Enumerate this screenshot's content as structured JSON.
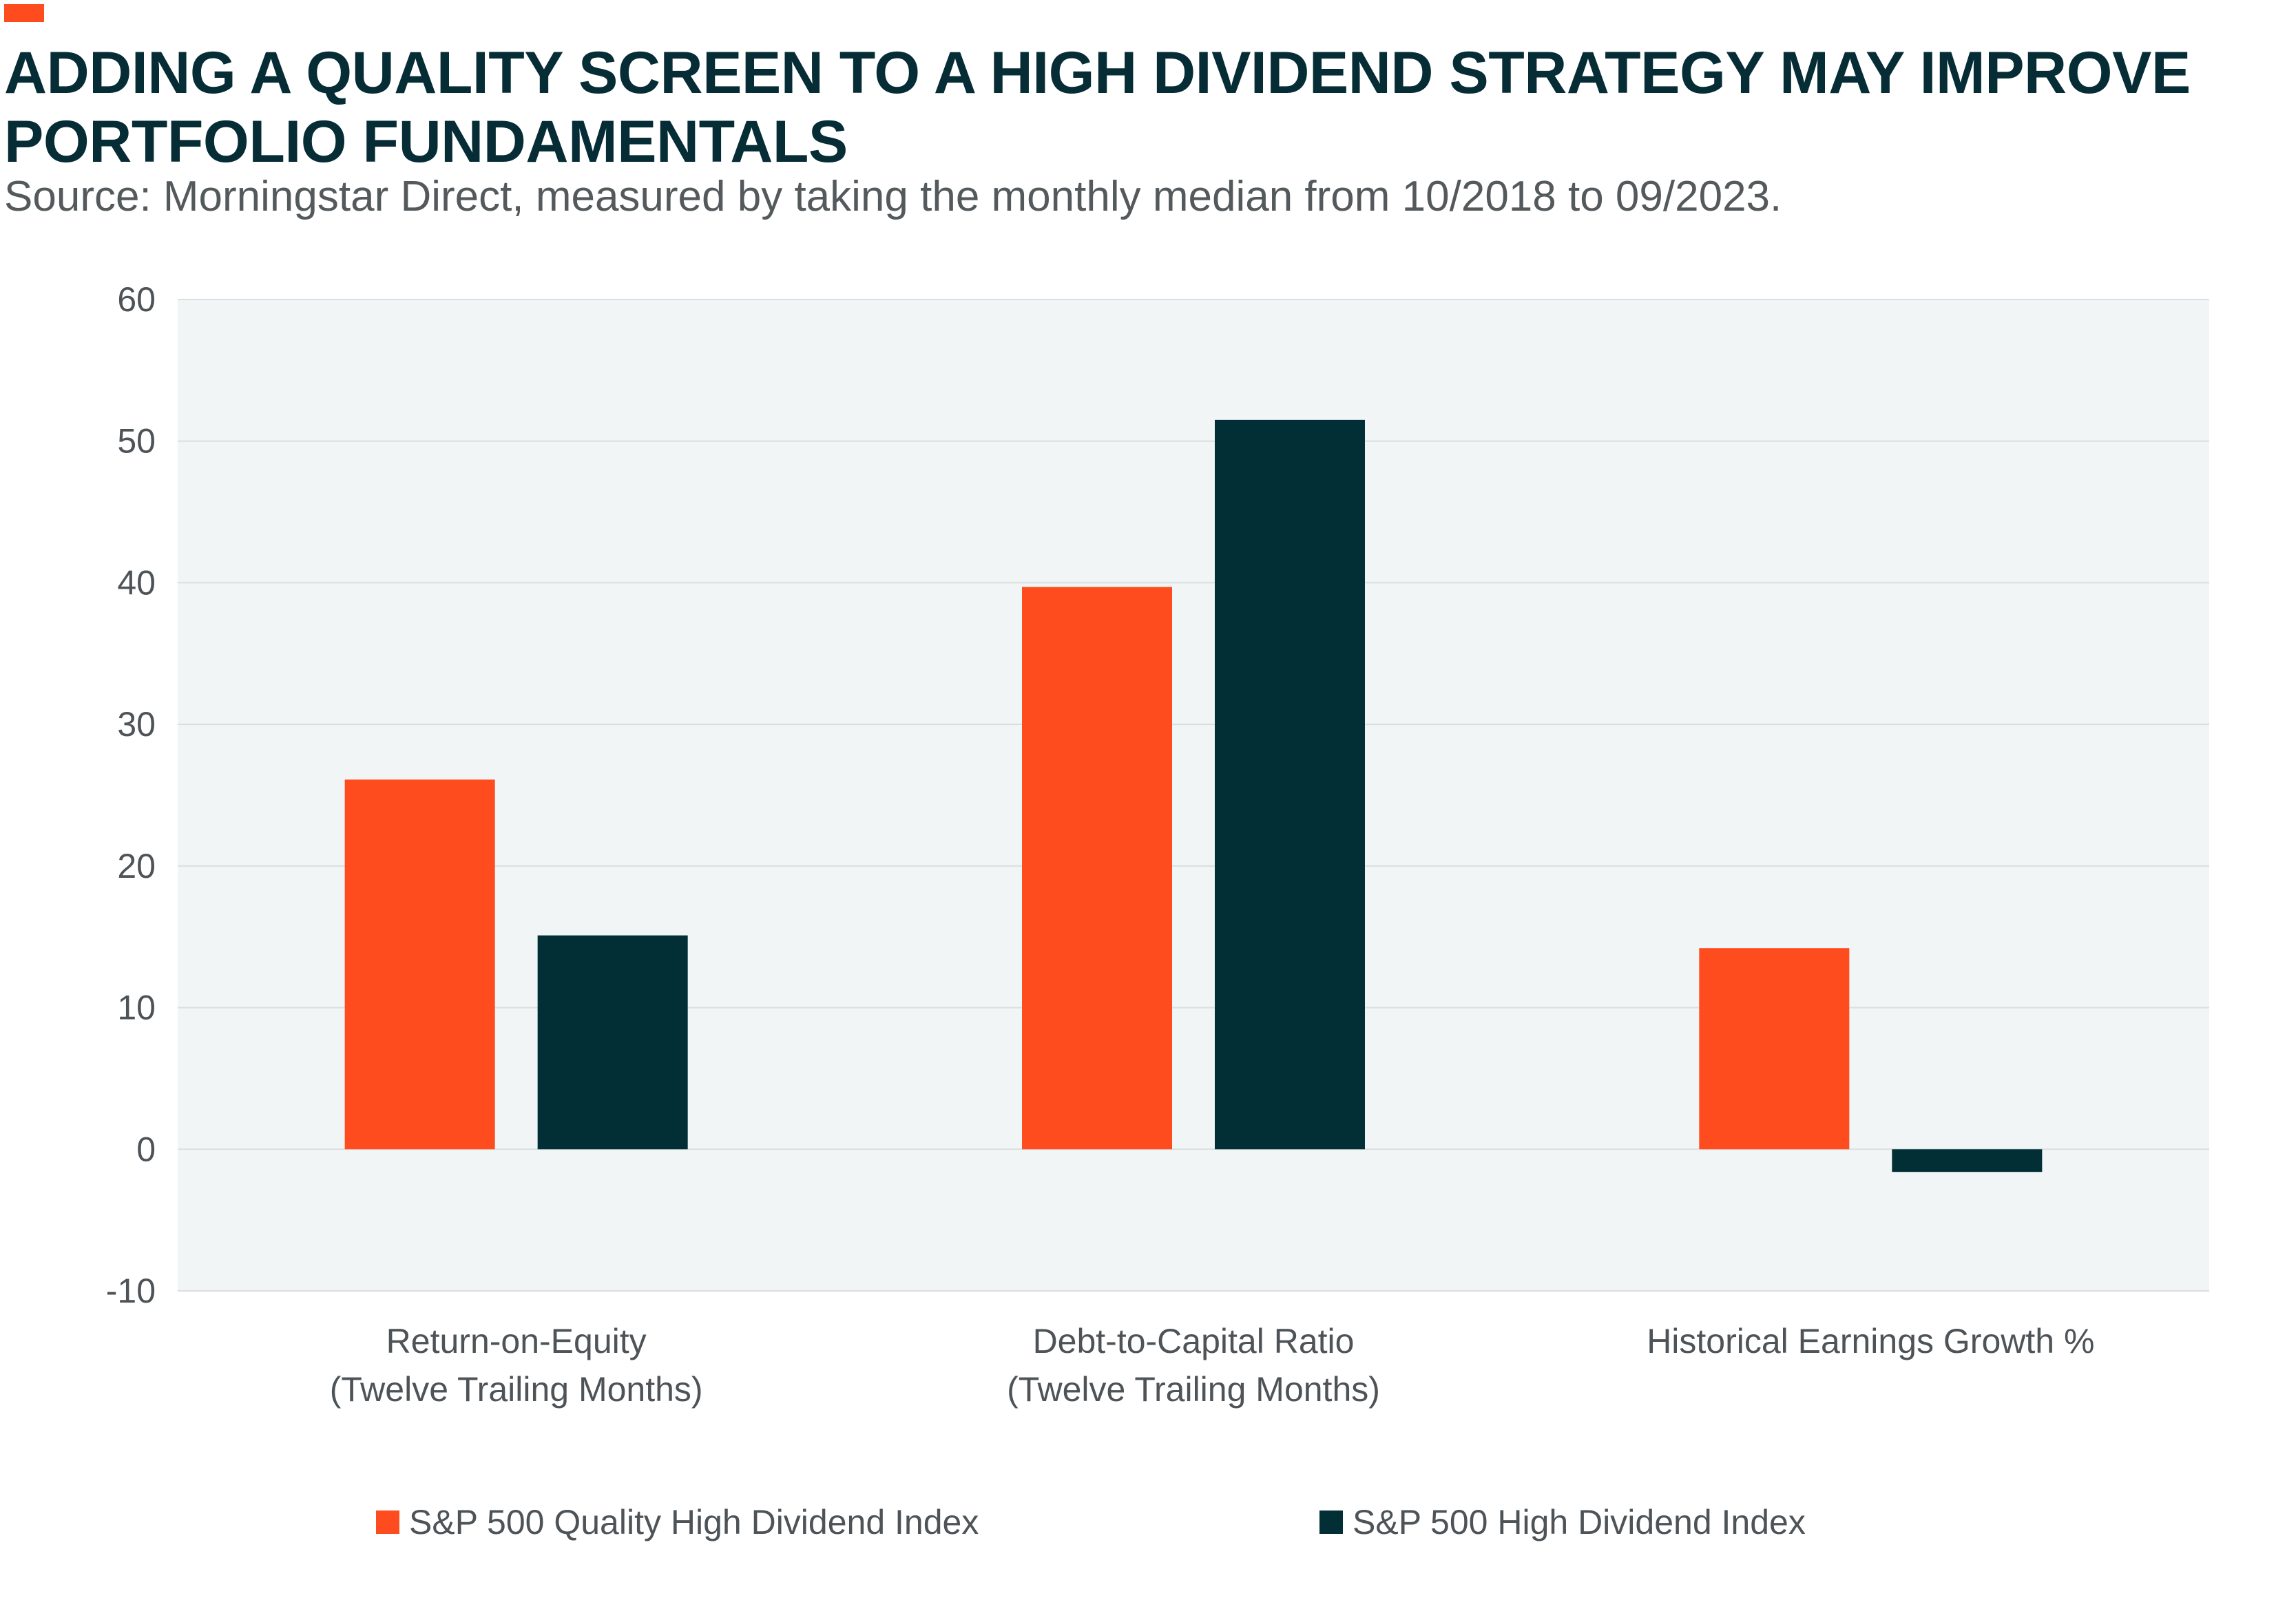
{
  "header": {
    "title": "ADDING A QUALITY SCREEN TO A HIGH DIVIDEND STRATEGY MAY IMPROVE PORTFOLIO FUNDAMENTALS",
    "subtitle": "Source: Morningstar Direct, measured by taking the monthly median from 10/2018 to 09/2023."
  },
  "colors": {
    "accent": "#ff4c1f",
    "dark": "#022e35",
    "plot_background": "#f1f5f5",
    "gridline": "#d9dfe0"
  },
  "chart_data": {
    "type": "bar",
    "categories": [
      [
        "Return-on-Equity",
        "(Twelve Trailing Months)"
      ],
      [
        "Debt-to-Capital Ratio",
        "(Twelve Trailing Months)"
      ],
      [
        "Historical Earnings Growth %"
      ]
    ],
    "series": [
      {
        "name": "S&P 500 Quality High Dividend Index",
        "color": "#ff4c1f",
        "values": [
          26.1,
          39.7,
          14.2
        ]
      },
      {
        "name": "S&P 500 High Dividend Index",
        "color": "#022e35",
        "values": [
          15.1,
          51.5,
          -1.6
        ]
      }
    ],
    "ylim": [
      -10,
      60
    ],
    "yticks": [
      60,
      50,
      40,
      30,
      20,
      10,
      0,
      -10
    ],
    "grid": true,
    "legend_position": "bottom"
  }
}
